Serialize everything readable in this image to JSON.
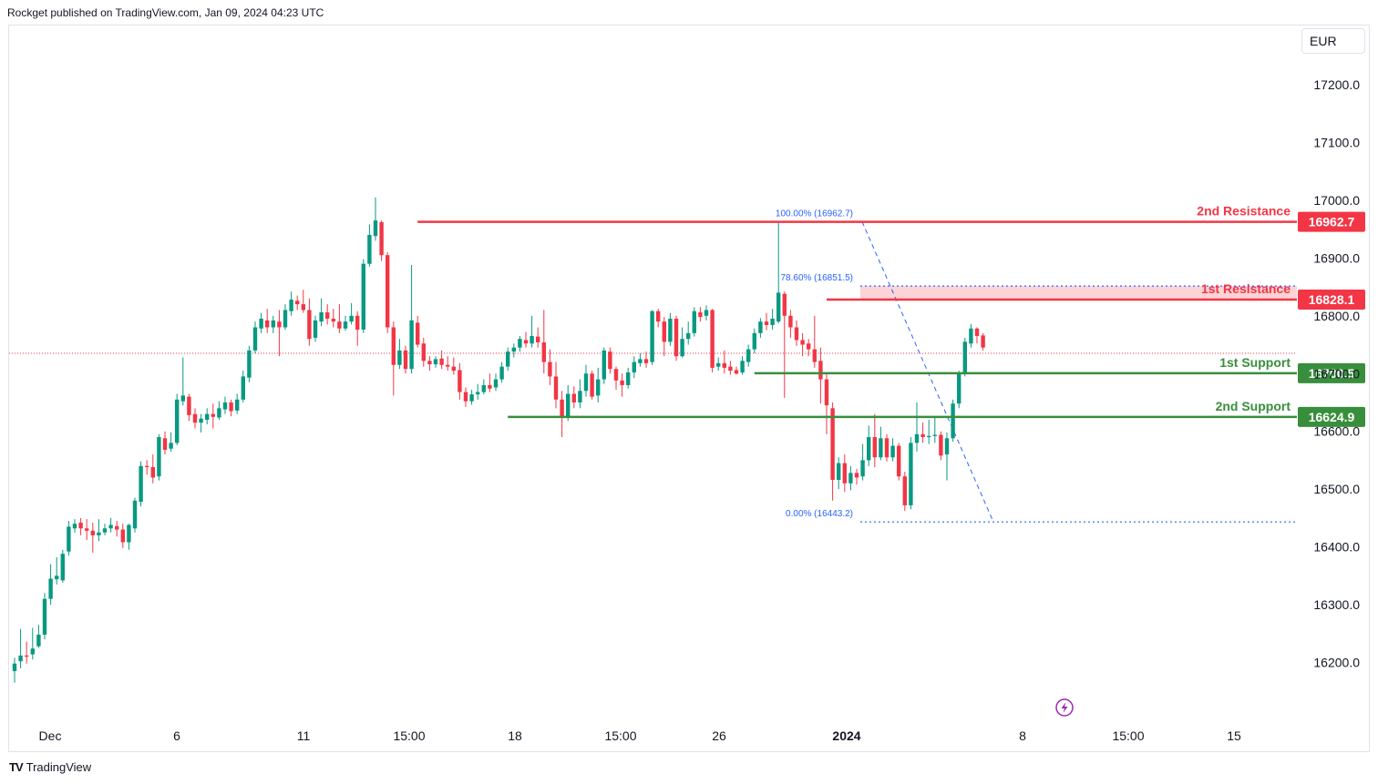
{
  "header": {
    "publisher": "Rockget published on TradingView.com, Jan 09, 2024 04:23 UTC"
  },
  "currency": "EUR",
  "footer": {
    "brand": "TradingView",
    "logo": "TV"
  },
  "colors": {
    "up": "#089981",
    "down": "#f23645",
    "resistance": "#f23645",
    "support": "#388e3c",
    "fib": "#2962ff",
    "last": "#f23645"
  },
  "chart_data": {
    "type": "candlestick",
    "yaxis": {
      "min": 16140,
      "max": 17310,
      "ticks": [
        16200,
        16300,
        16400,
        16500,
        16600,
        16700,
        16800,
        16900,
        17000,
        17100,
        17200
      ],
      "tick_labels": [
        "16200.0",
        "16300.0",
        "16400.0",
        "16500.0",
        "16600.0",
        "16700.0",
        "16800.0",
        "16900.0",
        "17000.0",
        "17100.0",
        "17200.0"
      ]
    },
    "xaxis": {
      "labels": [
        "Dec",
        "6",
        "11",
        "15:00",
        "18",
        "15:00",
        "26",
        "2024",
        "8",
        "15:00",
        "15"
      ],
      "bold": [
        "2024"
      ]
    },
    "last_price": 16735,
    "levels": [
      {
        "name": "2nd Resistance",
        "value": 16962.7,
        "label": "16962.7",
        "color": "#f23645",
        "from": 67
      },
      {
        "name": "1st Resistance",
        "value": 16828.1,
        "label": "16828.1",
        "color": "#f23645",
        "from": 135
      },
      {
        "name": "1st Support",
        "value": 16700.5,
        "label": "16700.5",
        "color": "#388e3c",
        "from": 123
      },
      {
        "name": "2nd Support",
        "value": 16624.9,
        "label": "16624.9",
        "color": "#388e3c",
        "from": 82
      }
    ],
    "resistance_zone": {
      "from": 16828.1,
      "to": 16851.5
    },
    "fibonacci": [
      {
        "label": "100.00% (16962.7)",
        "value": 16962.7
      },
      {
        "label": "78.60% (16851.5)",
        "value": 16851.5
      },
      {
        "label": "0.00% (16443.2)",
        "value": 16443.2
      }
    ],
    "candles": [
      [
        16185,
        16198,
        16165,
        16208
      ],
      [
        16202,
        16212,
        16190,
        16258
      ],
      [
        16212,
        16210,
        16198,
        16236
      ],
      [
        16214,
        16224,
        16205,
        16260
      ],
      [
        16228,
        16248,
        16225,
        16265
      ],
      [
        16248,
        16310,
        16240,
        16320
      ],
      [
        16310,
        16345,
        16300,
        16370
      ],
      [
        16344,
        16350,
        16335,
        16382
      ],
      [
        16342,
        16388,
        16338,
        16395
      ],
      [
        16392,
        16435,
        16385,
        16445
      ],
      [
        16432,
        16440,
        16425,
        16448
      ],
      [
        16442,
        16432,
        16420,
        16450
      ],
      [
        16432,
        16428,
        16412,
        16448
      ],
      [
        16428,
        16420,
        16390,
        16442
      ],
      [
        16420,
        16425,
        16410,
        16448
      ],
      [
        16425,
        16432,
        16420,
        16440
      ],
      [
        16432,
        16438,
        16425,
        16450
      ],
      [
        16436,
        16430,
        16418,
        16445
      ],
      [
        16430,
        16408,
        16398,
        16440
      ],
      [
        16408,
        16438,
        16395,
        16440
      ],
      [
        16432,
        16480,
        16425,
        16485
      ],
      [
        16478,
        16540,
        16470,
        16548
      ],
      [
        16540,
        16538,
        16525,
        16550
      ],
      [
        16538,
        16520,
        16510,
        16560
      ],
      [
        16522,
        16590,
        16515,
        16595
      ],
      [
        16588,
        16568,
        16560,
        16600
      ],
      [
        16570,
        16580,
        16565,
        16598
      ],
      [
        16580,
        16655,
        16576,
        16665
      ],
      [
        16652,
        16662,
        16645,
        16728
      ],
      [
        16660,
        16628,
        16618,
        16665
      ],
      [
        16630,
        16615,
        16605,
        16640
      ],
      [
        16615,
        16622,
        16598,
        16630
      ],
      [
        16620,
        16630,
        16612,
        16640
      ],
      [
        16630,
        16625,
        16605,
        16648
      ],
      [
        16624,
        16640,
        16620,
        16652
      ],
      [
        16638,
        16650,
        16630,
        16660
      ],
      [
        16650,
        16635,
        16626,
        16655
      ],
      [
        16636,
        16655,
        16630,
        16665
      ],
      [
        16655,
        16695,
        16650,
        16705
      ],
      [
        16693,
        16740,
        16685,
        16748
      ],
      [
        16740,
        16780,
        16735,
        16790
      ],
      [
        16778,
        16795,
        16770,
        16805
      ],
      [
        16792,
        16780,
        16770,
        16812
      ],
      [
        16780,
        16792,
        16770,
        16800
      ],
      [
        16790,
        16780,
        16730,
        16810
      ],
      [
        16780,
        16810,
        16776,
        16820
      ],
      [
        16808,
        16828,
        16800,
        16842
      ],
      [
        16826,
        16820,
        16810,
        16835
      ],
      [
        16820,
        16810,
        16805,
        16845
      ],
      [
        16810,
        16760,
        16748,
        16830
      ],
      [
        16762,
        16792,
        16755,
        16800
      ],
      [
        16790,
        16806,
        16782,
        16830
      ],
      [
        16806,
        16795,
        16785,
        16820
      ],
      [
        16795,
        16790,
        16780,
        16812
      ],
      [
        16790,
        16778,
        16770,
        16820
      ],
      [
        16778,
        16790,
        16774,
        16800
      ],
      [
        16790,
        16800,
        16785,
        16822
      ],
      [
        16800,
        16776,
        16748,
        16808
      ],
      [
        16776,
        16890,
        16770,
        16898
      ],
      [
        16890,
        16940,
        16885,
        16958
      ],
      [
        16938,
        16965,
        16930,
        17005
      ],
      [
        16962,
        16905,
        16895,
        16965
      ],
      [
        16905,
        16780,
        16770,
        16910
      ],
      [
        16780,
        16715,
        16662,
        16790
      ],
      [
        16715,
        16740,
        16708,
        16760
      ],
      [
        16740,
        16708,
        16700,
        16748
      ],
      [
        16708,
        16792,
        16700,
        16888
      ],
      [
        16788,
        16750,
        16745,
        16800
      ],
      [
        16752,
        16722,
        16712,
        16762
      ],
      [
        16722,
        16716,
        16705,
        16730
      ],
      [
        16716,
        16725,
        16710,
        16730
      ],
      [
        16726,
        16715,
        16708,
        16740
      ],
      [
        16715,
        16712,
        16705,
        16730
      ],
      [
        16712,
        16705,
        16698,
        16728
      ],
      [
        16706,
        16668,
        16655,
        16718
      ],
      [
        16668,
        16652,
        16642,
        16676
      ],
      [
        16652,
        16664,
        16646,
        16672
      ],
      [
        16664,
        16668,
        16655,
        16682
      ],
      [
        16668,
        16680,
        16664,
        16690
      ],
      [
        16680,
        16674,
        16668,
        16700
      ],
      [
        16676,
        16690,
        16670,
        16700
      ],
      [
        16690,
        16712,
        16684,
        16720
      ],
      [
        16712,
        16738,
        16705,
        16745
      ],
      [
        16738,
        16745,
        16728,
        16752
      ],
      [
        16745,
        16760,
        16738,
        16765
      ],
      [
        16758,
        16752,
        16745,
        16772
      ],
      [
        16752,
        16765,
        16745,
        16800
      ],
      [
        16764,
        16754,
        16745,
        16780
      ],
      [
        16754,
        16720,
        16700,
        16810
      ],
      [
        16720,
        16695,
        16680,
        16742
      ],
      [
        16695,
        16655,
        16640,
        16720
      ],
      [
        16655,
        16625,
        16590,
        16670
      ],
      [
        16625,
        16665,
        16618,
        16680
      ],
      [
        16665,
        16650,
        16640,
        16678
      ],
      [
        16650,
        16670,
        16640,
        16690
      ],
      [
        16670,
        16700,
        16660,
        16715
      ],
      [
        16700,
        16660,
        16655,
        16705
      ],
      [
        16662,
        16690,
        16650,
        16710
      ],
      [
        16690,
        16740,
        16682,
        16745
      ],
      [
        16738,
        16708,
        16700,
        16745
      ],
      [
        16708,
        16688,
        16672,
        16712
      ],
      [
        16688,
        16680,
        16660,
        16700
      ],
      [
        16680,
        16702,
        16674,
        16710
      ],
      [
        16702,
        16720,
        16692,
        16730
      ],
      [
        16718,
        16725,
        16712,
        16735
      ],
      [
        16725,
        16718,
        16710,
        16738
      ],
      [
        16720,
        16808,
        16715,
        16810
      ],
      [
        16808,
        16790,
        16780,
        16812
      ],
      [
        16790,
        16755,
        16730,
        16798
      ],
      [
        16755,
        16795,
        16748,
        16805
      ],
      [
        16795,
        16730,
        16722,
        16800
      ],
      [
        16730,
        16760,
        16728,
        16780
      ],
      [
        16760,
        16770,
        16750,
        16790
      ],
      [
        16770,
        16808,
        16764,
        16815
      ],
      [
        16806,
        16798,
        16790,
        16815
      ],
      [
        16800,
        16810,
        16792,
        16818
      ],
      [
        16810,
        16710,
        16702,
        16812
      ],
      [
        16712,
        16718,
        16705,
        16728
      ],
      [
        16718,
        16710,
        16700,
        16740
      ],
      [
        16712,
        16705,
        16698,
        16722
      ],
      [
        16706,
        16700,
        16698,
        16712
      ],
      [
        16702,
        16722,
        16698,
        16730
      ],
      [
        16720,
        16742,
        16712,
        16750
      ],
      [
        16742,
        16770,
        16735,
        16778
      ],
      [
        16770,
        16790,
        16762,
        16796
      ],
      [
        16790,
        16784,
        16775,
        16805
      ],
      [
        16784,
        16795,
        16776,
        16812
      ],
      [
        16790,
        16840,
        16787,
        16962
      ],
      [
        16838,
        16800,
        16658,
        16842
      ],
      [
        16800,
        16780,
        16762,
        16810
      ],
      [
        16780,
        16758,
        16748,
        16792
      ],
      [
        16758,
        16750,
        16730,
        16770
      ],
      [
        16752,
        16742,
        16730,
        16760
      ],
      [
        16742,
        16720,
        16710,
        16800
      ],
      [
        16722,
        16690,
        16648,
        16745
      ],
      [
        16690,
        16645,
        16595,
        16702
      ],
      [
        16640,
        16516,
        16480,
        16650
      ],
      [
        16516,
        16545,
        16500,
        16555
      ],
      [
        16545,
        16510,
        16495,
        16560
      ],
      [
        16510,
        16528,
        16498,
        16540
      ],
      [
        16528,
        16520,
        16508,
        16535
      ],
      [
        16522,
        16550,
        16515,
        16578
      ],
      [
        16550,
        16590,
        16540,
        16610
      ],
      [
        16590,
        16555,
        16538,
        16630
      ],
      [
        16555,
        16588,
        16550,
        16608
      ],
      [
        16588,
        16555,
        16548,
        16595
      ],
      [
        16555,
        16575,
        16548,
        16588
      ],
      [
        16575,
        16522,
        16515,
        16580
      ],
      [
        16522,
        16472,
        16462,
        16530
      ],
      [
        16472,
        16580,
        16465,
        16590
      ],
      [
        16580,
        16595,
        16565,
        16650
      ],
      [
        16595,
        16590,
        16580,
        16615
      ],
      [
        16590,
        16592,
        16578,
        16620
      ],
      [
        16592,
        16594,
        16580,
        16625
      ],
      [
        16594,
        16558,
        16550,
        16600
      ],
      [
        16560,
        16588,
        16515,
        16598
      ],
      [
        16588,
        16648,
        16582,
        16655
      ],
      [
        16648,
        16700,
        16640,
        16705
      ],
      [
        16700,
        16755,
        16695,
        16762
      ],
      [
        16752,
        16778,
        16745,
        16786
      ],
      [
        16778,
        16765,
        16752,
        16780
      ],
      [
        16766,
        16745,
        16740,
        16770
      ]
    ]
  }
}
